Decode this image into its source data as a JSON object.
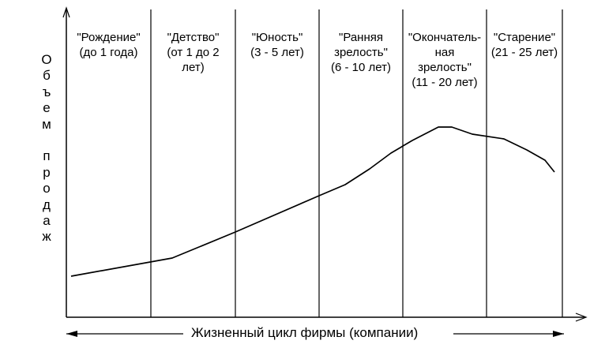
{
  "y_axis_label": "Объем продаж",
  "x_axis_label": "Жизненный цикл фирмы (компании)",
  "stages": [
    {
      "id": "birth",
      "lines": [
        "\"Рождение\"",
        "(до 1 года)"
      ]
    },
    {
      "id": "childhood",
      "lines": [
        "\"Детство\"",
        "(от 1 до 2",
        "лет)"
      ]
    },
    {
      "id": "youth",
      "lines": [
        "\"Юность\"",
        "(3 - 5 лет)"
      ]
    },
    {
      "id": "early-maturity",
      "lines": [
        "\"Ранняя",
        "зрелость\"",
        "(6 - 10 лет)"
      ]
    },
    {
      "id": "final-maturity",
      "lines": [
        "\"Окончатель-",
        "ная",
        "зрелость\"",
        "(11 - 20 лет)"
      ]
    },
    {
      "id": "aging",
      "lines": [
        "\"Старение\"",
        "(21 - 25 лет)"
      ]
    }
  ],
  "colors": {
    "line": "#000000",
    "background": "#ffffff"
  }
}
